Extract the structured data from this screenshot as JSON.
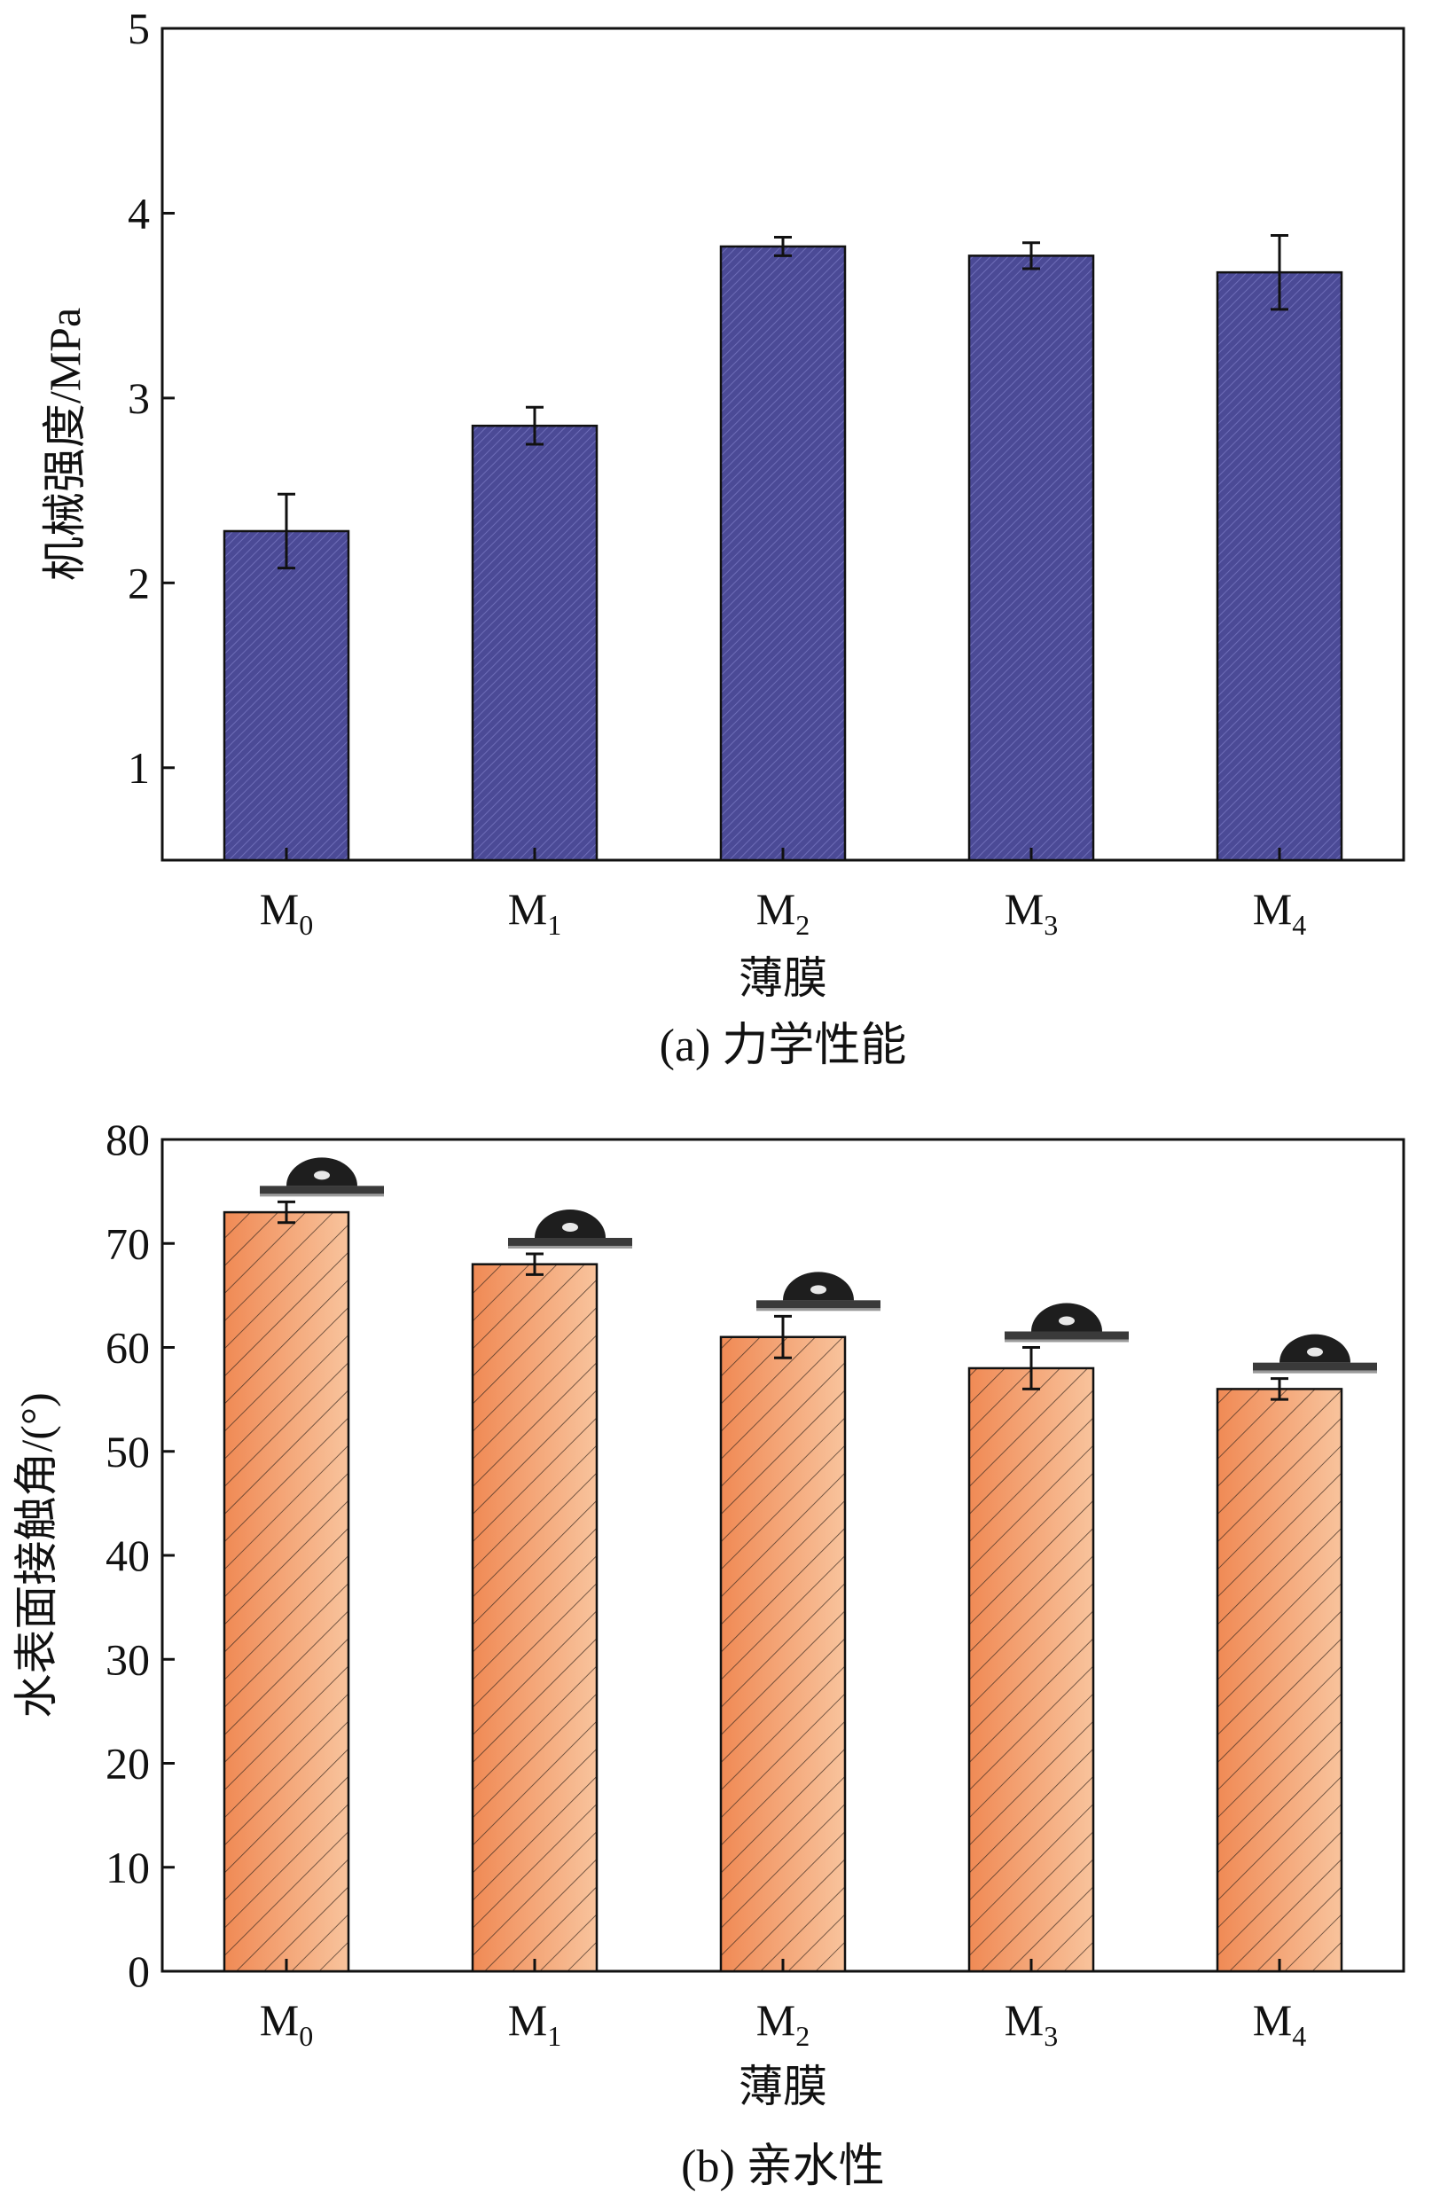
{
  "chart_data": [
    {
      "type": "bar",
      "categories": [
        "M0",
        "M1",
        "M2",
        "M3",
        "M4"
      ],
      "category_labels": [
        {
          "main": "M",
          "sub": "0"
        },
        {
          "main": "M",
          "sub": "1"
        },
        {
          "main": "M",
          "sub": "2"
        },
        {
          "main": "M",
          "sub": "3"
        },
        {
          "main": "M",
          "sub": "4"
        }
      ],
      "values": [
        2.28,
        2.85,
        3.82,
        3.77,
        3.68
      ],
      "errors": [
        0.2,
        0.1,
        0.05,
        0.07,
        0.2
      ],
      "xlabel": "薄膜",
      "ylabel": "机械强度/MPa",
      "caption": "(a) 力学性能",
      "ylim": [
        0.5,
        5
      ],
      "yticks": [
        1,
        2,
        3,
        4,
        5
      ],
      "bar_color": "#4b4a96",
      "grid": false
    },
    {
      "type": "bar",
      "categories": [
        "M0",
        "M1",
        "M2",
        "M3",
        "M4"
      ],
      "category_labels": [
        {
          "main": "M",
          "sub": "0"
        },
        {
          "main": "M",
          "sub": "1"
        },
        {
          "main": "M",
          "sub": "2"
        },
        {
          "main": "M",
          "sub": "3"
        },
        {
          "main": "M",
          "sub": "4"
        }
      ],
      "values": [
        73,
        68,
        61,
        58,
        56
      ],
      "errors": [
        1,
        1,
        2,
        2,
        1
      ],
      "xlabel": "薄膜",
      "ylabel": "水表面接触角/(°)",
      "caption": "(b) 亲水性",
      "ylim": [
        0,
        80
      ],
      "yticks": [
        0,
        10,
        20,
        30,
        40,
        50,
        60,
        70,
        80
      ],
      "bar_color": "#f29a6a",
      "grid": false,
      "droplet_icons": "water-droplet-icon"
    }
  ]
}
